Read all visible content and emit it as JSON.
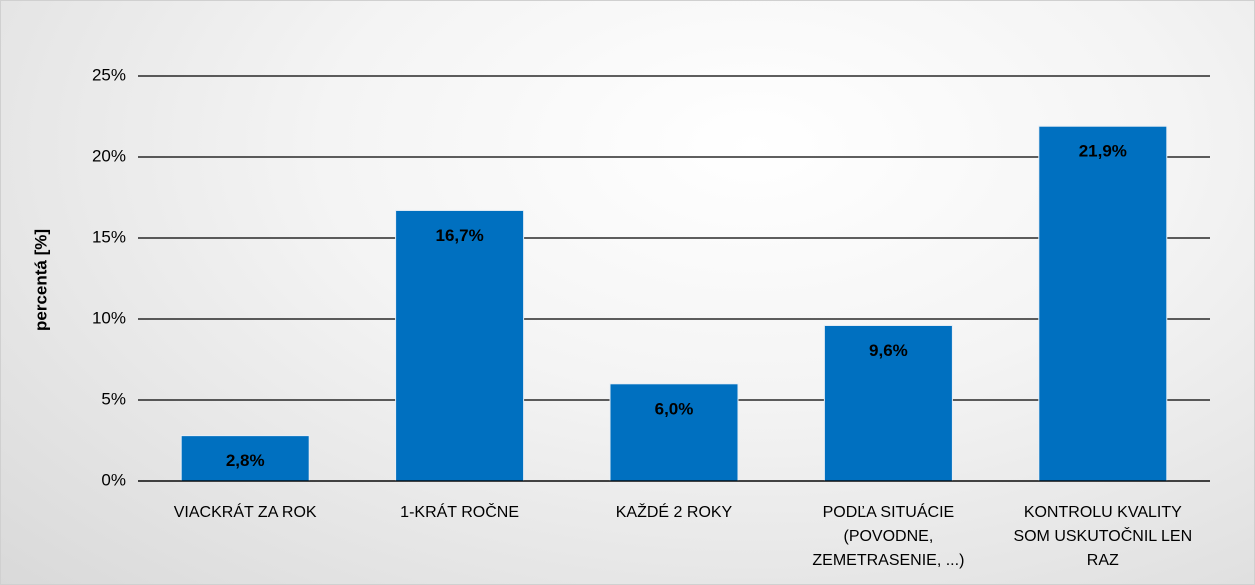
{
  "chart_data": {
    "type": "bar",
    "y_label": "percentá [%]",
    "categories": [
      "VIACKRÁT ZA ROK",
      "1-KRÁT ROČNE",
      "KAŽDÉ 2 ROKY",
      "PODĽA SITUÁCIE (POVODNE, ZEMETRASENIE, ...)",
      "KONTROLU KVALITY SOM USKUTOČNIL LEN RAZ"
    ],
    "values": [
      2.8,
      16.7,
      6.0,
      9.6,
      21.9
    ],
    "value_labels": [
      "2,8%",
      "16,7%",
      "6,0%",
      "9,6%",
      "21,9%"
    ],
    "color": "#0070c0",
    "ylim": [
      0,
      25
    ],
    "yticks": [
      {
        "value": 0,
        "label": "0%"
      },
      {
        "value": 5,
        "label": "5%"
      },
      {
        "value": 10,
        "label": "10%"
      },
      {
        "value": 15,
        "label": "15%"
      },
      {
        "value": 20,
        "label": "20%"
      },
      {
        "value": 25,
        "label": "25%"
      }
    ],
    "grid": true
  }
}
